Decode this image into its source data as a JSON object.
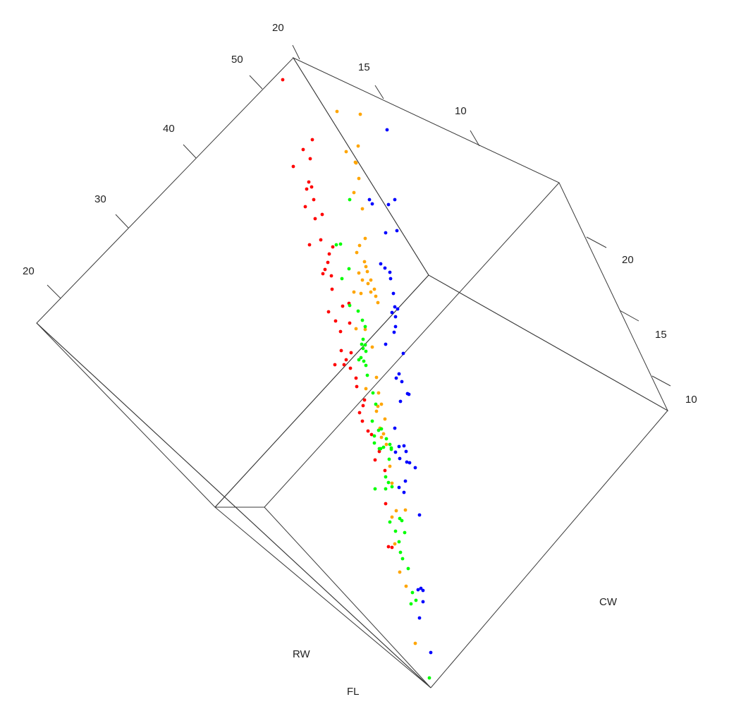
{
  "chart_data": {
    "type": "scatter",
    "projection": "3d",
    "grid": false,
    "axes": {
      "cw": {
        "label": "CW",
        "ticks": [
          "20",
          "30",
          "40",
          "50"
        ]
      },
      "rw": {
        "label": "RW",
        "ticks": [
          "20",
          "15",
          "10"
        ]
      },
      "fl": {
        "label": "FL",
        "ticks": [
          "20",
          "15",
          "10"
        ]
      }
    },
    "groups": [
      {
        "color": "#ff0000"
      },
      {
        "color": "#ffa500"
      },
      {
        "color": "#00ff00"
      },
      {
        "color": "#0000ff"
      }
    ],
    "points": [
      [
        0,
        401,
        113
      ],
      [
        0,
        443,
        198
      ],
      [
        0,
        430,
        212
      ],
      [
        0,
        440,
        225
      ],
      [
        0,
        416,
        236
      ],
      [
        0,
        438,
        258
      ],
      [
        0,
        442,
        265
      ],
      [
        0,
        435,
        268
      ],
      [
        0,
        445,
        283
      ],
      [
        0,
        433,
        293
      ],
      [
        0,
        457,
        304
      ],
      [
        0,
        447,
        310
      ],
      [
        0,
        439,
        347
      ],
      [
        0,
        455,
        340
      ],
      [
        0,
        472,
        350
      ],
      [
        0,
        467,
        360
      ],
      [
        0,
        465,
        372
      ],
      [
        0,
        461,
        382
      ],
      [
        0,
        458,
        388
      ],
      [
        0,
        470,
        391
      ],
      [
        0,
        471,
        410
      ],
      [
        0,
        486,
        434
      ],
      [
        0,
        495,
        430
      ],
      [
        0,
        466,
        442
      ],
      [
        0,
        476,
        455
      ],
      [
        0,
        483,
        470
      ],
      [
        0,
        496,
        458
      ],
      [
        0,
        484,
        497
      ],
      [
        0,
        491,
        510
      ],
      [
        0,
        498,
        500
      ],
      [
        0,
        475,
        517
      ],
      [
        0,
        488,
        517
      ],
      [
        0,
        497,
        522
      ],
      [
        0,
        505,
        536
      ],
      [
        0,
        506,
        548
      ],
      [
        0,
        517,
        567
      ],
      [
        0,
        515,
        575
      ],
      [
        0,
        510,
        585
      ],
      [
        0,
        514,
        597
      ],
      [
        0,
        522,
        611
      ],
      [
        0,
        527,
        616
      ],
      [
        0,
        538,
        640
      ],
      [
        0,
        532,
        652
      ],
      [
        0,
        546,
        667
      ],
      [
        0,
        547,
        714
      ],
      [
        0,
        551,
        775
      ],
      [
        0,
        556,
        776
      ],
      [
        1,
        478,
        158
      ],
      [
        1,
        511,
        162
      ],
      [
        1,
        508,
        207
      ],
      [
        1,
        491,
        215
      ],
      [
        1,
        504,
        230
      ],
      [
        1,
        505,
        231
      ],
      [
        1,
        509,
        253
      ],
      [
        1,
        502,
        273
      ],
      [
        1,
        514,
        296
      ],
      [
        1,
        518,
        338
      ],
      [
        1,
        510,
        348
      ],
      [
        1,
        506,
        358
      ],
      [
        1,
        517,
        371
      ],
      [
        1,
        519,
        378
      ],
      [
        1,
        521,
        385
      ],
      [
        1,
        509,
        387
      ],
      [
        1,
        514,
        397
      ],
      [
        1,
        526,
        397
      ],
      [
        1,
        522,
        402
      ],
      [
        1,
        531,
        410
      ],
      [
        1,
        526,
        414
      ],
      [
        1,
        502,
        414
      ],
      [
        1,
        512,
        416
      ],
      [
        1,
        533,
        420
      ],
      [
        1,
        536,
        429
      ],
      [
        1,
        505,
        466
      ],
      [
        1,
        518,
        467
      ],
      [
        1,
        528,
        492
      ],
      [
        1,
        534,
        535
      ],
      [
        1,
        519,
        551
      ],
      [
        1,
        537,
        557
      ],
      [
        1,
        536,
        576
      ],
      [
        1,
        541,
        573
      ],
      [
        1,
        534,
        583
      ],
      [
        1,
        546,
        594
      ],
      [
        1,
        539,
        607
      ],
      [
        1,
        541,
        620
      ],
      [
        1,
        544,
        615
      ],
      [
        1,
        548,
        630
      ],
      [
        1,
        553,
        661
      ],
      [
        1,
        556,
        685
      ],
      [
        1,
        562,
        724
      ],
      [
        1,
        575,
        723
      ],
      [
        1,
        556,
        733
      ],
      [
        1,
        560,
        771
      ],
      [
        1,
        567,
        811
      ],
      [
        1,
        576,
        831
      ],
      [
        1,
        589,
        912
      ],
      [
        2,
        496,
        283
      ],
      [
        2,
        477,
        347
      ],
      [
        2,
        483,
        346
      ],
      [
        2,
        495,
        381
      ],
      [
        2,
        485,
        395
      ],
      [
        2,
        496,
        433
      ],
      [
        2,
        508,
        441
      ],
      [
        2,
        514,
        454
      ],
      [
        2,
        518,
        463
      ],
      [
        2,
        515,
        481
      ],
      [
        2,
        513,
        488
      ],
      [
        2,
        518,
        489
      ],
      [
        2,
        515,
        494
      ],
      [
        2,
        519,
        498
      ],
      [
        2,
        512,
        507
      ],
      [
        2,
        509,
        510
      ],
      [
        2,
        516,
        512
      ],
      [
        2,
        519,
        518
      ],
      [
        2,
        521,
        532
      ],
      [
        2,
        529,
        557
      ],
      [
        2,
        533,
        573
      ],
      [
        2,
        528,
        597
      ],
      [
        2,
        541,
        608
      ],
      [
        2,
        537,
        610
      ],
      [
        2,
        531,
        618
      ],
      [
        2,
        531,
        628
      ],
      [
        2,
        548,
        622
      ],
      [
        2,
        553,
        630
      ],
      [
        2,
        538,
        636
      ],
      [
        2,
        544,
        634
      ],
      [
        2,
        555,
        635
      ],
      [
        2,
        555,
        637
      ],
      [
        2,
        540,
        636
      ],
      [
        2,
        552,
        651
      ],
      [
        2,
        547,
        676
      ],
      [
        2,
        551,
        684
      ],
      [
        2,
        556,
        690
      ],
      [
        2,
        532,
        693
      ],
      [
        2,
        547,
        693
      ],
      [
        2,
        567,
        735
      ],
      [
        2,
        570,
        738
      ],
      [
        2,
        553,
        740
      ],
      [
        2,
        561,
        753
      ],
      [
        2,
        574,
        755
      ],
      [
        2,
        566,
        768
      ],
      [
        2,
        568,
        783
      ],
      [
        2,
        571,
        792
      ],
      [
        2,
        579,
        806
      ],
      [
        2,
        585,
        840
      ],
      [
        2,
        590,
        851
      ],
      [
        2,
        583,
        856
      ],
      [
        2,
        609,
        961
      ]
    ],
    "points_blue": [
      [
        549,
        184
      ],
      [
        524,
        283
      ],
      [
        528,
        289
      ],
      [
        560,
        283
      ],
      [
        551,
        290
      ],
      [
        563,
        327
      ],
      [
        547,
        330
      ],
      [
        540,
        374
      ],
      [
        546,
        380
      ],
      [
        553,
        386
      ],
      [
        554,
        395
      ],
      [
        558,
        416
      ],
      [
        560,
        435
      ],
      [
        564,
        438
      ],
      [
        556,
        443
      ],
      [
        561,
        449
      ],
      [
        561,
        463
      ],
      [
        559,
        471
      ],
      [
        547,
        488
      ],
      [
        572,
        501
      ],
      [
        566,
        530
      ],
      [
        562,
        536
      ],
      [
        570,
        541
      ],
      [
        578,
        558
      ],
      [
        568,
        569
      ],
      [
        580,
        559
      ],
      [
        560,
        607
      ],
      [
        566,
        633
      ],
      [
        573,
        632
      ],
      [
        576,
        640
      ],
      [
        561,
        641
      ],
      [
        567,
        650
      ],
      [
        577,
        655
      ],
      [
        589,
        663
      ],
      [
        581,
        656
      ],
      [
        575,
        682
      ],
      [
        566,
        691
      ],
      [
        573,
        698
      ],
      [
        595,
        730
      ],
      [
        597,
        834
      ],
      [
        600,
        837
      ],
      [
        593,
        836
      ],
      [
        600,
        853
      ],
      [
        595,
        876
      ],
      [
        611,
        925
      ]
    ]
  }
}
